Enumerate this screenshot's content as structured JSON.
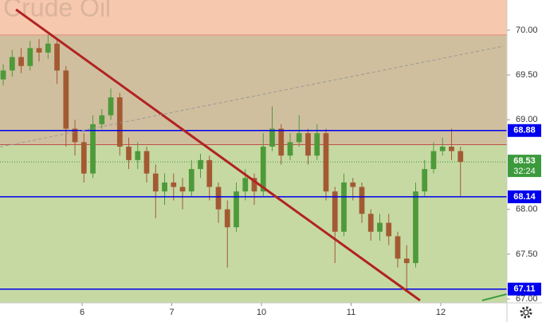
{
  "chart_data": {
    "type": "candlestick",
    "title": "Crude Oil",
    "x": [
      0.12,
      0.22,
      0.32,
      0.42,
      0.52,
      0.62,
      0.72,
      0.82,
      0.92,
      1.02,
      1.12,
      1.22,
      1.32,
      1.42,
      1.52,
      1.62,
      1.72,
      1.82,
      1.92,
      2.02,
      2.12,
      2.22,
      2.32,
      2.42,
      2.52,
      2.62,
      2.72,
      2.82,
      2.92,
      3.02,
      3.12,
      3.22,
      3.32,
      3.42,
      3.52,
      3.62,
      3.72,
      3.82,
      3.92,
      4.02,
      4.12,
      4.22,
      4.32,
      4.42,
      4.52,
      4.62,
      4.72,
      4.82,
      4.92,
      5.02,
      5.12,
      5.22
    ],
    "open": [
      69.45,
      69.55,
      69.7,
      69.6,
      69.8,
      69.75,
      69.85,
      69.55,
      68.9,
      68.75,
      68.4,
      68.95,
      69.05,
      69.25,
      68.7,
      68.55,
      68.65,
      68.4,
      68.2,
      68.3,
      68.25,
      68.2,
      68.45,
      68.55,
      68.25,
      68.0,
      67.8,
      68.2,
      68.35,
      68.2,
      68.7,
      68.9,
      68.6,
      68.75,
      68.85,
      68.6,
      68.85,
      68.2,
      67.75,
      68.3,
      68.25,
      67.95,
      67.75,
      67.85,
      67.7,
      67.45,
      67.4,
      68.2,
      68.45,
      68.65,
      68.7,
      68.65
    ],
    "high": [
      69.62,
      69.78,
      69.8,
      69.88,
      69.9,
      69.95,
      69.9,
      69.6,
      69.0,
      68.85,
      69.05,
      69.12,
      69.35,
      69.3,
      68.8,
      68.75,
      68.7,
      68.5,
      68.4,
      68.4,
      68.35,
      68.55,
      68.62,
      68.6,
      68.3,
      68.1,
      68.3,
      68.45,
      68.4,
      68.85,
      69.15,
      68.95,
      68.85,
      69.05,
      68.9,
      68.95,
      68.9,
      68.25,
      68.4,
      68.35,
      68.3,
      68.0,
      67.95,
      67.95,
      67.75,
      67.6,
      68.3,
      68.55,
      68.75,
      68.8,
      68.9,
      68.7
    ],
    "low": [
      69.38,
      69.48,
      69.52,
      69.55,
      69.65,
      69.68,
      69.4,
      68.7,
      68.6,
      68.3,
      68.35,
      68.9,
      69.0,
      68.6,
      68.45,
      68.45,
      68.3,
      67.9,
      68.05,
      68.1,
      68.0,
      68.15,
      68.35,
      68.1,
      67.85,
      67.35,
      67.75,
      68.1,
      68.05,
      68.15,
      68.65,
      68.5,
      68.55,
      68.7,
      68.5,
      68.55,
      68.1,
      67.4,
      67.7,
      68.1,
      67.85,
      67.65,
      67.65,
      67.6,
      67.35,
      67.1,
      67.35,
      68.15,
      68.4,
      68.6,
      68.55,
      68.15
    ],
    "close": [
      69.55,
      69.7,
      69.6,
      69.8,
      69.75,
      69.85,
      69.55,
      68.9,
      68.75,
      68.4,
      68.95,
      69.05,
      69.25,
      68.7,
      68.55,
      68.65,
      68.4,
      68.2,
      68.3,
      68.25,
      68.2,
      68.45,
      68.55,
      68.25,
      68.0,
      67.8,
      68.2,
      68.35,
      68.2,
      68.7,
      68.9,
      68.6,
      68.75,
      68.85,
      68.6,
      68.85,
      68.2,
      67.75,
      68.3,
      68.25,
      67.95,
      67.75,
      67.85,
      67.7,
      67.45,
      67.4,
      68.2,
      68.45,
      68.65,
      68.7,
      68.65,
      68.53
    ],
    "up_color": "#4e9a3a",
    "down_color": "#a35a33",
    "xlim": [
      0.084,
      5.738
    ],
    "xticks": [
      {
        "value": 1,
        "label": "6"
      },
      {
        "value": 2,
        "label": "7"
      },
      {
        "value": 3,
        "label": "10"
      },
      {
        "value": 4,
        "label": "11"
      },
      {
        "value": 5,
        "label": "12"
      }
    ],
    "ylim": [
      66.956,
      70.337
    ],
    "yticks": [
      {
        "value": 67,
        "label": "67.00"
      },
      {
        "value": 67.5,
        "label": "67.50"
      },
      {
        "value": 68,
        "label": "68.00"
      },
      {
        "value": 69,
        "label": "69.00"
      },
      {
        "value": 69.5,
        "label": "69.50"
      },
      {
        "value": 70,
        "label": "70.00"
      }
    ],
    "zones": [
      {
        "from": 69.947,
        "to": 70.337,
        "color": "#f6c8ad"
      },
      {
        "from": 68.722,
        "to": 69.947,
        "color": "#d0bf9e"
      },
      {
        "from": 66.956,
        "to": 68.722,
        "color": "#c6d9a3"
      }
    ],
    "zone_edges": [
      {
        "value": 69.947,
        "color": "#e88a7a"
      },
      {
        "value": 68.722,
        "color": "#c0504d"
      }
    ],
    "levels": [
      {
        "value": 68.88,
        "color": "#0000ee"
      },
      {
        "value": 68.14,
        "color": "#0000ee"
      },
      {
        "value": 67.11,
        "color": "#0000ee"
      }
    ],
    "trend_lines": [
      {
        "x": [
          0.262,
          4.769
        ],
        "y": [
          70.231,
          66.983
        ],
        "color": "#b22222",
        "width": 3,
        "dash": false
      },
      {
        "x": [
          0.084,
          5.702
        ],
        "y": [
          68.696,
          69.823
        ],
        "color": "#999999",
        "width": 1,
        "dash": true
      },
      {
        "x": [
          5.462,
          5.738
        ],
        "y": [
          66.983,
          67.054
        ],
        "color": "#3c9a3c",
        "width": 2,
        "dash": false
      }
    ],
    "last_price": 68.53,
    "last_color": "#3c9a3c",
    "countdown": "32:24"
  }
}
